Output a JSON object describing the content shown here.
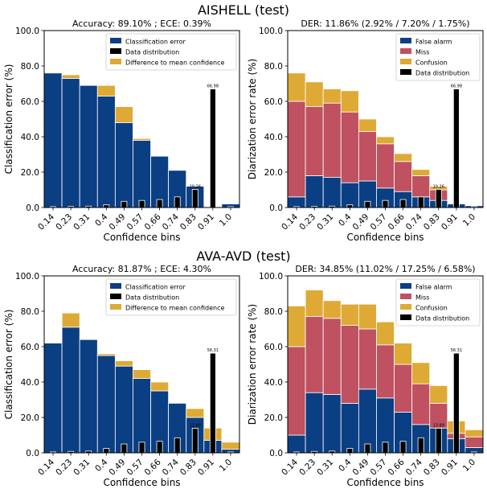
{
  "figure": {
    "row_titles": [
      "AISHELL (test)",
      "AVA-AVD (test)"
    ]
  },
  "colors": {
    "classification_error": "#0b3f84",
    "miss": "#bf5160",
    "confusion": "#deaa35",
    "data_distribution": "#000000",
    "bar_edge": "#ffffff"
  },
  "chart_data": [
    {
      "type": "bar",
      "title": "Accuracy: 89.10% ; ECE: 0.39%",
      "xlabel": "Confidence bins",
      "ylabel": "Classification error (%)",
      "categories": [
        "0.14",
        "0.23",
        "0.31",
        "0.4",
        "0.49",
        "0.57",
        "0.66",
        "0.74",
        "0.83",
        "0.91",
        "1.0"
      ],
      "yticks": [
        "0.0",
        "20.0",
        "40.0",
        "60.0",
        "80.0",
        "100.0"
      ],
      "ylim": [
        0,
        100
      ],
      "legend": [
        "Classification error",
        "Data distribution",
        "Difference to mean confidence"
      ],
      "legend_position": "top-right",
      "series": [
        {
          "name": "Classification error",
          "values": [
            76,
            73,
            69,
            63,
            48,
            38,
            29,
            21,
            12,
            0,
            2
          ]
        },
        {
          "name": "Difference to mean confidence",
          "values": [
            0,
            2,
            0,
            6,
            9,
            1,
            0,
            0,
            0.5,
            0,
            0
          ]
        },
        {
          "name": "Data distribution",
          "values": [
            0.5,
            0.6,
            0.8,
            1.5,
            3.5,
            4.0,
            4.5,
            6.0,
            10.26,
            66.98,
            0.5
          ]
        }
      ],
      "printed_labels": [
        "",
        "",
        "",
        "",
        "",
        "",
        "",
        "",
        "10.26",
        "66.98",
        ""
      ]
    },
    {
      "type": "bar",
      "title": "DER: 11.86% (2.92% / 7.20% / 1.75%)",
      "xlabel": "Confidence bins",
      "ylabel": "Diarization error rate (%)",
      "categories": [
        "0.14",
        "0.23",
        "0.31",
        "0.4",
        "0.49",
        "0.57",
        "0.66",
        "0.74",
        "0.83",
        "0.91",
        "1.0"
      ],
      "yticks": [
        "0.0",
        "20.0",
        "40.0",
        "60.0",
        "80.0",
        "100.0"
      ],
      "ylim": [
        0,
        100
      ],
      "legend": [
        "False alarm",
        "Miss",
        "Confusion",
        "Data distribution"
      ],
      "legend_position": "top-right",
      "series": [
        {
          "name": "False alarm",
          "values": [
            6,
            18,
            17,
            14,
            15,
            11,
            9,
            6,
            4,
            2,
            1
          ]
        },
        {
          "name": "Miss",
          "values": [
            54,
            39,
            42,
            40,
            28,
            25,
            17,
            12,
            6,
            0,
            0
          ]
        },
        {
          "name": "Confusion",
          "values": [
            16,
            14,
            8,
            12,
            7,
            4,
            4.5,
            3.5,
            2,
            0,
            0
          ]
        },
        {
          "name": "Data distribution",
          "values": [
            0.5,
            0.6,
            0.8,
            1.5,
            3.5,
            4.0,
            4.5,
            6.0,
            10.26,
            66.98,
            0.5
          ]
        }
      ],
      "printed_labels": [
        "",
        "",
        "",
        "",
        "",
        "",
        "",
        "",
        "10.26",
        "66.98",
        ""
      ]
    },
    {
      "type": "bar",
      "title": "Accuracy: 81.87% ; ECE: 4.30%",
      "xlabel": "Confidence bins",
      "ylabel": "Classification error (%)",
      "categories": [
        "0.14",
        "0.23",
        "0.31",
        "0.4",
        "0.49",
        "0.57",
        "0.66",
        "0.74",
        "0.83",
        "0.91",
        "1.0"
      ],
      "yticks": [
        "0.0",
        "20.0",
        "40.0",
        "60.0",
        "80.0",
        "100.0"
      ],
      "ylim": [
        0,
        100
      ],
      "legend": [
        "Classification error",
        "Data distribution",
        "Difference to mean confidence"
      ],
      "legend_position": "top-right",
      "series": [
        {
          "name": "Classification error",
          "values": [
            62,
            71,
            64,
            55,
            49,
            42,
            35,
            28,
            20,
            7,
            2
          ]
        },
        {
          "name": "Difference to mean confidence",
          "values": [
            0,
            8,
            0,
            1,
            3,
            5,
            5,
            0,
            5,
            7,
            4
          ]
        },
        {
          "name": "Data distribution",
          "values": [
            0.5,
            0.8,
            1.0,
            2.5,
            5.0,
            6.0,
            6.5,
            8.5,
            13.89,
            56.31,
            0.5
          ]
        }
      ],
      "printed_labels": [
        "",
        "",
        "",
        "",
        "",
        "",
        "",
        "",
        "13.89",
        "56.31",
        ""
      ]
    },
    {
      "type": "bar",
      "title": "DER: 34.85% (11.02% / 17.25% / 6.58%)",
      "xlabel": "Confidence bins",
      "ylabel": "Diarization error rate (%)",
      "categories": [
        "0.14",
        "0.23",
        "0.31",
        "0.4",
        "0.49",
        "0.57",
        "0.66",
        "0.74",
        "0.83",
        "0.91",
        "1.0"
      ],
      "yticks": [
        "0.0",
        "20.0",
        "40.0",
        "60.0",
        "80.0",
        "100.0"
      ],
      "ylim": [
        0,
        100
      ],
      "legend": [
        "False alarm",
        "Miss",
        "Confusion",
        "Data distribution"
      ],
      "legend_position": "top-right",
      "series": [
        {
          "name": "False alarm",
          "values": [
            10,
            34,
            33,
            28,
            36,
            31,
            23,
            16,
            14,
            8,
            3
          ]
        },
        {
          "name": "Miss",
          "values": [
            50,
            43,
            43,
            44,
            34,
            30,
            27,
            23,
            14,
            3,
            6
          ]
        },
        {
          "name": "Confusion",
          "values": [
            23,
            15,
            10,
            12,
            14,
            13,
            12,
            12,
            10,
            7,
            4
          ]
        },
        {
          "name": "Data distribution",
          "values": [
            0.5,
            0.8,
            1.0,
            2.5,
            5.0,
            6.0,
            6.5,
            8.5,
            13.89,
            56.31,
            0.5
          ]
        }
      ],
      "printed_labels": [
        "",
        "",
        "",
        "",
        "",
        "",
        "",
        "",
        "13.89",
        "56.31",
        ""
      ]
    }
  ]
}
